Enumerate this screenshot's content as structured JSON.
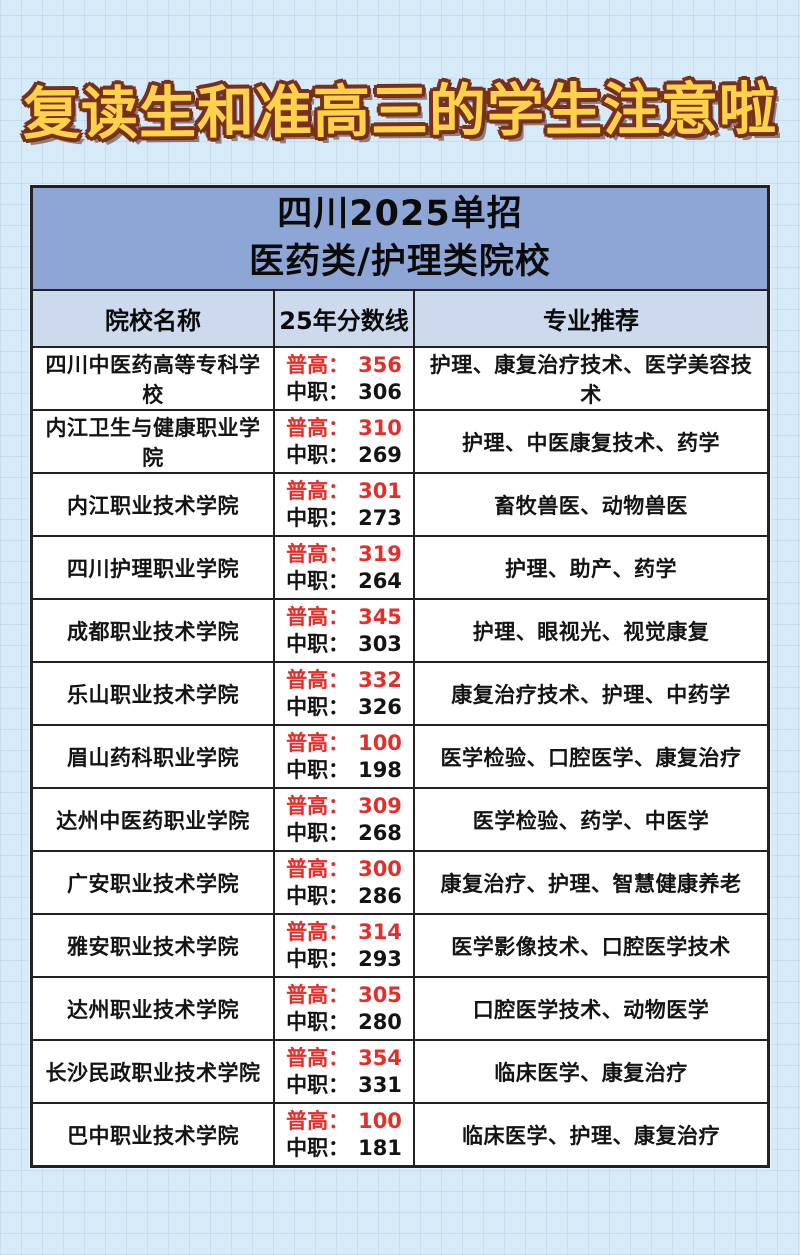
{
  "page_title": "复读生和准高三的学生注意啦",
  "table": {
    "title_line1": "四川2025单招",
    "title_line2": "医药类/护理类院校",
    "columns": [
      "院校名称",
      "25年分数线",
      "专业推荐"
    ],
    "score_labels": {
      "regular": "普高：",
      "vocational": "中职："
    },
    "rows": [
      {
        "school": "四川中医药高等专科学校",
        "regular": "356",
        "vocational": "306",
        "majors": "护理、康复治疗技术、医学美容技术"
      },
      {
        "school": "内江卫生与健康职业学院",
        "regular": "310",
        "vocational": "269",
        "majors": "护理、中医康复技术、药学"
      },
      {
        "school": "内江职业技术学院",
        "regular": "301",
        "vocational": "273",
        "majors": "畜牧兽医、动物兽医"
      },
      {
        "school": "四川护理职业学院",
        "regular": "319",
        "vocational": "264",
        "majors": "护理、助产、药学"
      },
      {
        "school": "成都职业技术学院",
        "regular": "345",
        "vocational": "303",
        "majors": "护理、眼视光、视觉康复"
      },
      {
        "school": "乐山职业技术学院",
        "regular": "332",
        "vocational": "326",
        "majors": "康复治疗技术、护理、中药学"
      },
      {
        "school": "眉山药科职业学院",
        "regular": "100",
        "vocational": "198",
        "majors": "医学检验、口腔医学、康复治疗"
      },
      {
        "school": "达州中医药职业学院",
        "regular": "309",
        "vocational": "268",
        "majors": "医学检验、药学、中医学"
      },
      {
        "school": "广安职业技术学院",
        "regular": "300",
        "vocational": "286",
        "majors": "康复治疗、护理、智慧健康养老"
      },
      {
        "school": "雅安职业技术学院",
        "regular": "314",
        "vocational": "293",
        "majors": "医学影像技术、口腔医学技术"
      },
      {
        "school": "达州职业技术学院",
        "regular": "305",
        "vocational": "280",
        "majors": "口腔医学技术、动物医学"
      },
      {
        "school": "长沙民政职业技术学院",
        "regular": "354",
        "vocational": "331",
        "majors": "临床医学、康复治疗"
      },
      {
        "school": "巴中职业技术学院",
        "regular": "100",
        "vocational": "181",
        "majors": "临床医学、护理、康复治疗"
      }
    ]
  },
  "colors": {
    "page_bg": "#d7eaf7",
    "band_blue": "#8ea6d5",
    "header_blue": "#cdd9ec",
    "accent_red": "#e0302b",
    "title_yellow": "#ffd24a",
    "title_outline": "#76301c",
    "border_dark": "#222222"
  }
}
